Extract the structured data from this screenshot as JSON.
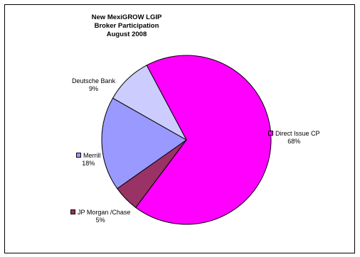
{
  "chart_data": {
    "type": "pie",
    "title": [
      "New MexiGROW LGIP",
      "Broker Participation",
      "August 2008"
    ],
    "slices": [
      {
        "name": "Direct Issue CP",
        "pct_label": "68%",
        "value": 68,
        "color": "#FF00FF"
      },
      {
        "name": "JP Morgan /Chase",
        "pct_label": "5%",
        "value": 5,
        "color": "#993366"
      },
      {
        "name": "Merrill",
        "pct_label": "18%",
        "value": 18,
        "color": "#9999FF"
      },
      {
        "name": "Deutsche Bank",
        "pct_label": "9%",
        "value": 9,
        "color": "#CCCCFF"
      }
    ]
  }
}
